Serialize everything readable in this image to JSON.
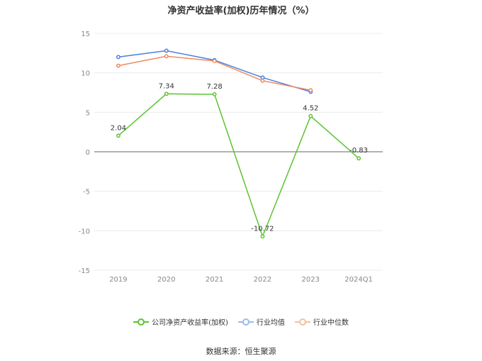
{
  "chart_data": {
    "type": "line",
    "title": "净资产收益率(加权)历年情况（%）",
    "categories": [
      "2019",
      "2020",
      "2021",
      "2022",
      "2023",
      "2024Q1"
    ],
    "ylim": [
      -15,
      15
    ],
    "yticks": [
      15,
      10,
      5,
      0,
      -5,
      -10,
      -15
    ],
    "grid": true,
    "legend_position": "bottom",
    "series": [
      {
        "name": "公司净资产收益率(加权)",
        "color": "#5cc432",
        "values": [
          2.04,
          7.34,
          7.28,
          -10.72,
          4.52,
          -0.83
        ],
        "labels": [
          "2.04",
          "7.34",
          "7.28",
          "-10.72",
          "4.52",
          "-0.83"
        ]
      },
      {
        "name": "行业均值",
        "color": "#4a7fdf",
        "values": [
          12.0,
          12.8,
          11.6,
          9.4,
          7.6,
          null
        ]
      },
      {
        "name": "行业中位数",
        "color": "#f08a5d",
        "values": [
          10.9,
          12.1,
          11.5,
          9.0,
          7.8,
          null
        ]
      }
    ]
  },
  "legend": {
    "items": [
      "公司净资产收益率(加权)",
      "行业均值",
      "行业中位数"
    ]
  },
  "source": "数据来源：恒生聚源"
}
